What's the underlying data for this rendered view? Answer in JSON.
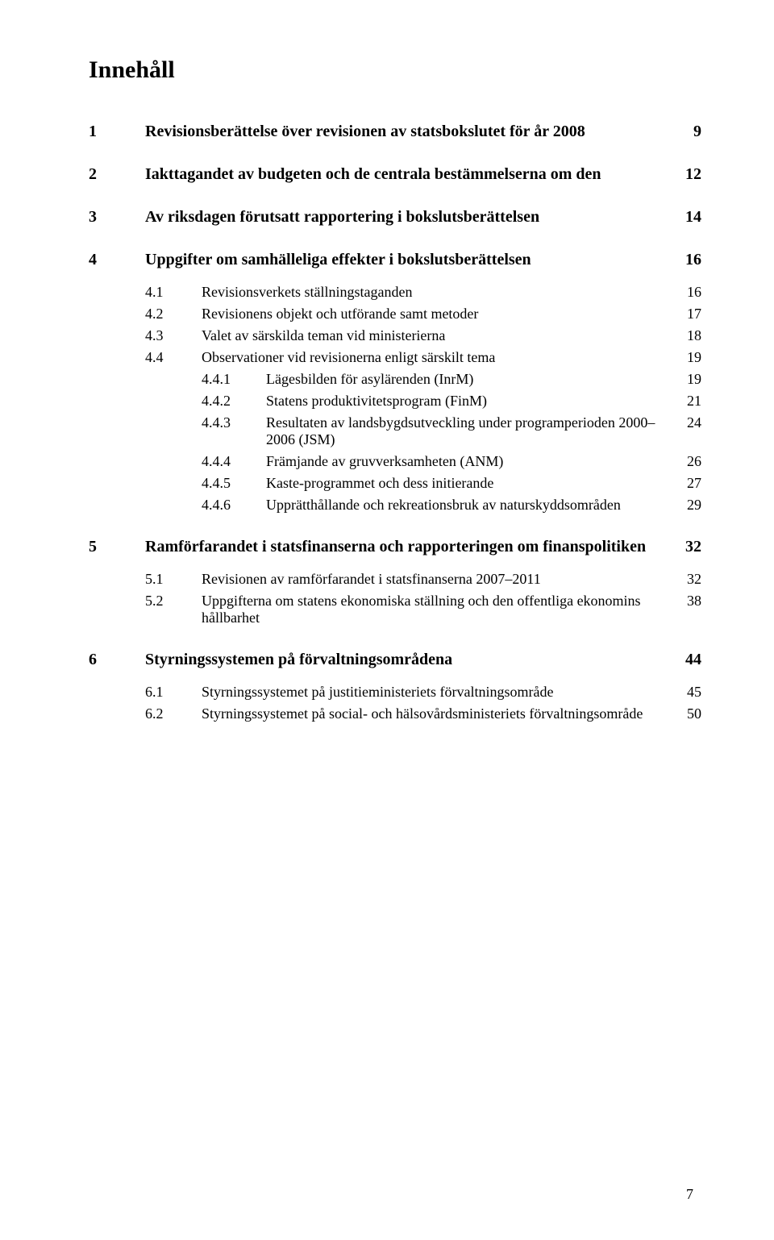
{
  "title": "Innehåll",
  "colors": {
    "background": "#ffffff",
    "text": "#000000"
  },
  "typography": {
    "title_fontsize": 30,
    "section_fontsize": 20,
    "body_fontsize": 18,
    "font_family": "Georgia, serif"
  },
  "entries": [
    {
      "level": "section",
      "num": "1",
      "label": "Revisionsberättelse över revisionen av statsbokslutet för år 2008",
      "page": "9"
    },
    {
      "level": "section",
      "num": "2",
      "label": "Iakttagandet av budgeten och de centrala bestämmelserna om den",
      "page": "12"
    },
    {
      "level": "section",
      "num": "3",
      "label": "Av riksdagen förutsatt rapportering i bokslutsberättelsen",
      "page": "14"
    },
    {
      "level": "section",
      "num": "4",
      "label": "Uppgifter om samhälleliga effekter i bokslutsberättelsen",
      "page": "16"
    },
    {
      "level": "sub",
      "num": "4.1",
      "label": "Revisionsverkets ställningstaganden",
      "page": "16"
    },
    {
      "level": "sub",
      "num": "4.2",
      "label": "Revisionens objekt och utförande samt metoder",
      "page": "17"
    },
    {
      "level": "sub",
      "num": "4.3",
      "label": "Valet av särskilda teman vid ministerierna",
      "page": "18"
    },
    {
      "level": "sub",
      "num": "4.4",
      "label": "Observationer vid revisionerna enligt särskilt tema",
      "page": "19"
    },
    {
      "level": "subsub",
      "num": "4.4.1",
      "label": "Lägesbilden för asylärenden (InrM)",
      "page": "19"
    },
    {
      "level": "subsub",
      "num": "4.4.2",
      "label": "Statens produktivitetsprogram (FinM)",
      "page": "21"
    },
    {
      "level": "subsub",
      "num": "4.4.3",
      "label": "Resultaten av landsbygdsutveckling under programperioden 2000–2006 (JSM)",
      "page": "24"
    },
    {
      "level": "subsub",
      "num": "4.4.4",
      "label": "Främjande av gruvverksamheten (ANM)",
      "page": "26"
    },
    {
      "level": "subsub",
      "num": "4.4.5",
      "label": "Kaste-programmet och dess initierande",
      "page": "27"
    },
    {
      "level": "subsub",
      "num": "4.4.6",
      "label": "Upprätthållande och rekreationsbruk av naturskyddsområden",
      "page": "29"
    },
    {
      "level": "section",
      "num": "5",
      "label": "Ramförfarandet i statsfinanserna och rapporteringen om finanspolitiken",
      "page": "32"
    },
    {
      "level": "sub",
      "num": "5.1",
      "label": "Revisionen av ramförfarandet i statsfinanserna 2007–2011",
      "page": "32"
    },
    {
      "level": "sub",
      "num": "5.2",
      "label": "Uppgifterna om statens ekonomiska ställning och den offentliga ekonomins hållbarhet",
      "page": "38"
    },
    {
      "level": "section",
      "num": "6",
      "label": "Styrningssystemen på förvaltningsområdena",
      "page": "44"
    },
    {
      "level": "sub",
      "num": "6.1",
      "label": "Styrningssystemet på justitieministeriets förvaltningsområde",
      "page": "45"
    },
    {
      "level": "sub",
      "num": "6.2",
      "label": "Styrningssystemet på social- och hälsovårdsministeriets förvaltningsområde",
      "page": "50"
    }
  ],
  "page_number": "7"
}
